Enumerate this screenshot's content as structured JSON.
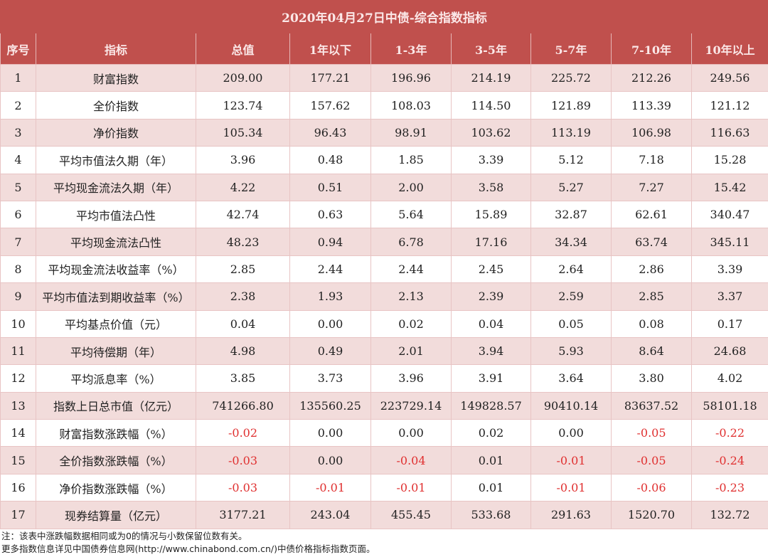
{
  "title": "2020年04月27日中债-综合指数指标",
  "chart_data": {
    "type": "table",
    "columns": [
      "序号",
      "指标",
      "总值",
      "1年以下",
      "1-3年",
      "3-5年",
      "5-7年",
      "7-10年",
      "10年以上"
    ],
    "rows": [
      [
        "1",
        "财富指数",
        "209.00",
        "177.21",
        "196.96",
        "214.19",
        "225.72",
        "212.26",
        "249.56"
      ],
      [
        "2",
        "全价指数",
        "123.74",
        "157.62",
        "108.03",
        "114.50",
        "121.89",
        "113.39",
        "121.12"
      ],
      [
        "3",
        "净价指数",
        "105.34",
        "96.43",
        "98.91",
        "103.62",
        "113.19",
        "106.98",
        "116.63"
      ],
      [
        "4",
        "平均市值法久期（年）",
        "3.96",
        "0.48",
        "1.85",
        "3.39",
        "5.12",
        "7.18",
        "15.28"
      ],
      [
        "5",
        "平均现金流法久期（年）",
        "4.22",
        "0.51",
        "2.00",
        "3.58",
        "5.27",
        "7.27",
        "15.42"
      ],
      [
        "6",
        "平均市值法凸性",
        "42.74",
        "0.63",
        "5.64",
        "15.89",
        "32.87",
        "62.61",
        "340.47"
      ],
      [
        "7",
        "平均现金流法凸性",
        "48.23",
        "0.94",
        "6.78",
        "17.16",
        "34.34",
        "63.74",
        "345.11"
      ],
      [
        "8",
        "平均现金流法收益率（%）",
        "2.85",
        "2.44",
        "2.44",
        "2.45",
        "2.64",
        "2.86",
        "3.39"
      ],
      [
        "9",
        "平均市值法到期收益率（%）",
        "2.38",
        "1.93",
        "2.13",
        "2.39",
        "2.59",
        "2.85",
        "3.37"
      ],
      [
        "10",
        "平均基点价值（元）",
        "0.04",
        "0.00",
        "0.02",
        "0.04",
        "0.05",
        "0.08",
        "0.17"
      ],
      [
        "11",
        "平均待偿期（年）",
        "4.98",
        "0.49",
        "2.01",
        "3.94",
        "5.93",
        "8.64",
        "24.68"
      ],
      [
        "12",
        "平均派息率（%）",
        "3.85",
        "3.73",
        "3.96",
        "3.91",
        "3.64",
        "3.80",
        "4.02"
      ],
      [
        "13",
        "指数上日总市值（亿元）",
        "741266.80",
        "135560.25",
        "223729.14",
        "149828.57",
        "90410.14",
        "83637.52",
        "58101.18"
      ],
      [
        "14",
        "财富指数涨跌幅（%）",
        "-0.02",
        "0.00",
        "0.00",
        "0.02",
        "0.00",
        "-0.05",
        "-0.22"
      ],
      [
        "15",
        "全价指数涨跌幅（%）",
        "-0.03",
        "0.00",
        "-0.04",
        "0.01",
        "-0.01",
        "-0.05",
        "-0.24"
      ],
      [
        "16",
        "净价指数涨跌幅（%）",
        "-0.03",
        "-0.01",
        "-0.01",
        "0.01",
        "-0.01",
        "-0.06",
        "-0.23"
      ],
      [
        "17",
        "现券结算量（亿元）",
        "3177.21",
        "243.04",
        "455.45",
        "533.68",
        "291.63",
        "1520.70",
        "132.72"
      ]
    ]
  },
  "notes": [
    "注：该表中涨跌幅数据相同或为0的情况与小数保留位数有关。",
    "更多指数信息详见中国债券信息网(http://www.chinabond.com.cn/)中债价格指标指数页面。"
  ],
  "colors": {
    "header": "#c0504d",
    "band": "#f2dcdb",
    "negative": "#e03030"
  }
}
